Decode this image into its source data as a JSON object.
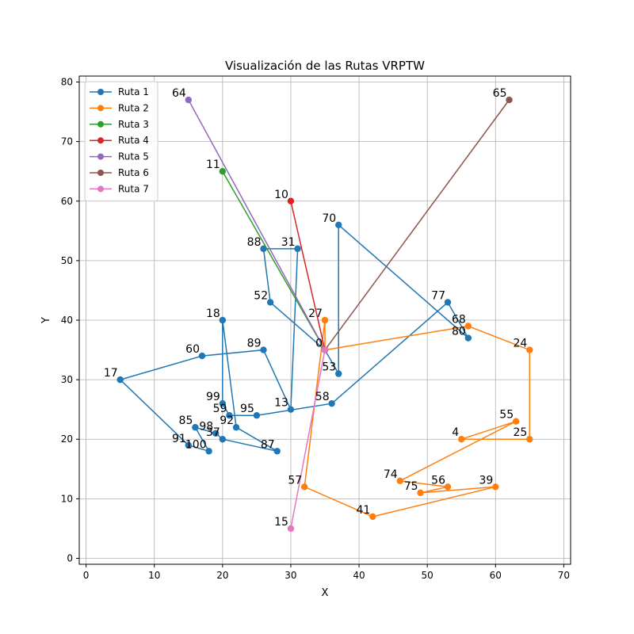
{
  "chart_data": {
    "type": "line",
    "title": "Visualización de las Rutas VRPTW",
    "xlabel": "X",
    "ylabel": "Y",
    "xlim": [
      -1,
      71
    ],
    "ylim": [
      -1,
      81
    ],
    "xticks": [
      0,
      10,
      20,
      30,
      40,
      50,
      60,
      70
    ],
    "yticks": [
      0,
      10,
      20,
      30,
      40,
      50,
      60,
      70,
      80
    ],
    "grid": true,
    "legend_position": "top-left",
    "depot": {
      "label": "0",
      "x": 35,
      "y": 35
    },
    "series": [
      {
        "name": "Ruta 1",
        "color": "#1f77b4",
        "points": [
          {
            "id": "0",
            "x": 35,
            "y": 35
          },
          {
            "id": "52",
            "x": 27,
            "y": 43
          },
          {
            "id": "88",
            "x": 26,
            "y": 52
          },
          {
            "id": "31",
            "x": 31,
            "y": 52
          },
          {
            "id": "13",
            "x": 30,
            "y": 25
          },
          {
            "id": "89",
            "x": 26,
            "y": 35
          },
          {
            "id": "60",
            "x": 17,
            "y": 34
          },
          {
            "id": "17",
            "x": 5,
            "y": 30
          },
          {
            "id": "91",
            "x": 15,
            "y": 19
          },
          {
            "id": "100",
            "x": 18,
            "y": 18
          },
          {
            "id": "85",
            "x": 16,
            "y": 22
          },
          {
            "id": "98",
            "x": 19,
            "y": 21
          },
          {
            "id": "37",
            "x": 20,
            "y": 20
          },
          {
            "id": "87",
            "x": 28,
            "y": 18
          },
          {
            "id": "92",
            "x": 22,
            "y": 22
          },
          {
            "id": "18",
            "x": 20,
            "y": 40
          },
          {
            "id": "99",
            "x": 20,
            "y": 26
          },
          {
            "id": "59",
            "x": 21,
            "y": 24
          },
          {
            "id": "95",
            "x": 25,
            "y": 24
          },
          {
            "id": "58",
            "x": 36,
            "y": 26
          },
          {
            "id": "77",
            "x": 53,
            "y": 43
          },
          {
            "id": "80",
            "x": 56,
            "y": 37
          },
          {
            "id": "70",
            "x": 37,
            "y": 56
          },
          {
            "id": "53",
            "x": 37,
            "y": 31
          },
          {
            "id": "0",
            "x": 35,
            "y": 35
          }
        ]
      },
      {
        "name": "Ruta 2",
        "color": "#ff7f0e",
        "points": [
          {
            "id": "0",
            "x": 35,
            "y": 35
          },
          {
            "id": "27",
            "x": 35,
            "y": 40
          },
          {
            "id": "57",
            "x": 32,
            "y": 12
          },
          {
            "id": "41",
            "x": 42,
            "y": 7
          },
          {
            "id": "39",
            "x": 60,
            "y": 12
          },
          {
            "id": "75",
            "x": 49,
            "y": 11
          },
          {
            "id": "56",
            "x": 53,
            "y": 12
          },
          {
            "id": "74",
            "x": 46,
            "y": 13
          },
          {
            "id": "55",
            "x": 63,
            "y": 23
          },
          {
            "id": "4",
            "x": 55,
            "y": 20
          },
          {
            "id": "25",
            "x": 65,
            "y": 20
          },
          {
            "id": "24",
            "x": 65,
            "y": 35
          },
          {
            "id": "68",
            "x": 56,
            "y": 39
          },
          {
            "id": "0",
            "x": 35,
            "y": 35
          }
        ]
      },
      {
        "name": "Ruta 3",
        "color": "#2ca02c",
        "points": [
          {
            "id": "0",
            "x": 35,
            "y": 35
          },
          {
            "id": "11",
            "x": 20,
            "y": 65
          }
        ]
      },
      {
        "name": "Ruta 4",
        "color": "#d62728",
        "points": [
          {
            "id": "0",
            "x": 35,
            "y": 35
          },
          {
            "id": "10",
            "x": 30,
            "y": 60
          }
        ]
      },
      {
        "name": "Ruta 5",
        "color": "#9467bd",
        "points": [
          {
            "id": "0",
            "x": 35,
            "y": 35
          },
          {
            "id": "64",
            "x": 15,
            "y": 77
          }
        ]
      },
      {
        "name": "Ruta 6",
        "color": "#8c564b",
        "points": [
          {
            "id": "0",
            "x": 35,
            "y": 35
          },
          {
            "id": "65",
            "x": 62,
            "y": 77
          }
        ]
      },
      {
        "name": "Ruta 7",
        "color": "#e377c2",
        "points": [
          {
            "id": "0",
            "x": 35,
            "y": 35
          },
          {
            "id": "15",
            "x": 30,
            "y": 5
          }
        ]
      }
    ]
  }
}
